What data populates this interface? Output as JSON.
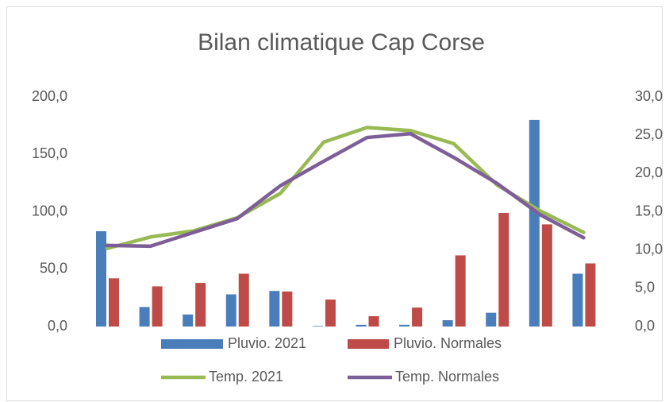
{
  "chart_data": {
    "type": "bar-line",
    "title": "Bilan climatique Cap Corse",
    "series": [
      {
        "name": "Pluvio. 2021",
        "type": "bar",
        "color": "#4a7ebb",
        "values": [
          83,
          17,
          10.5,
          28,
          31,
          0.5,
          1.5,
          1.5,
          5.5,
          12,
          180,
          46
        ]
      },
      {
        "name": "Pluvio. Normales",
        "type": "bar",
        "color": "#be4b48",
        "values": [
          42,
          35,
          38,
          46,
          30.5,
          23.5,
          9,
          16.5,
          62,
          99,
          89,
          55
        ]
      },
      {
        "name": "Temp. 2021",
        "type": "line",
        "axis": "y2",
        "color": "#98b954",
        "values": [
          10.2,
          11.7,
          12.5,
          14.2,
          17.4,
          24.1,
          26.0,
          25.6,
          23.9,
          18.5,
          15.1,
          12.3
        ]
      },
      {
        "name": "Temp. Normales",
        "type": "line",
        "axis": "y2",
        "color": "#7d5e98",
        "values": [
          10.6,
          10.5,
          12.3,
          14.1,
          18.4,
          21.6,
          24.7,
          25.2,
          22.1,
          18.7,
          14.6,
          11.6
        ]
      }
    ],
    "ylim": [
      0,
      200
    ],
    "yticks": [
      {
        "value": 0,
        "label": "0,0"
      },
      {
        "value": 50,
        "label": "50,0"
      },
      {
        "value": 100,
        "label": "100,0"
      },
      {
        "value": 150,
        "label": "150,0"
      },
      {
        "value": 200,
        "label": "200,0"
      }
    ],
    "y2lim": [
      0,
      30
    ],
    "y2ticks": [
      {
        "value": 0,
        "label": "0,0"
      },
      {
        "value": 5,
        "label": "5,0"
      },
      {
        "value": 10,
        "label": "10,0"
      },
      {
        "value": 15,
        "label": "15,0"
      },
      {
        "value": 20,
        "label": "20,0"
      },
      {
        "value": 25,
        "label": "25,0"
      },
      {
        "value": 30,
        "label": "30,0"
      }
    ]
  }
}
